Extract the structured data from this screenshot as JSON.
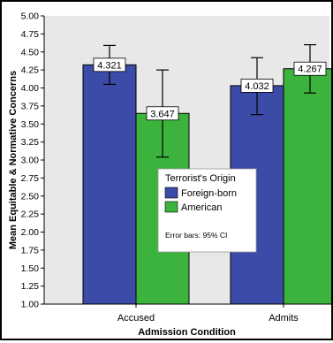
{
  "chart_data": {
    "type": "bar",
    "title": "",
    "xlabel": "Admission Condition",
    "ylabel": "Mean Equitable & Normative Concerns",
    "categories": [
      "Accused",
      "Admits"
    ],
    "series": [
      {
        "name": "Foreign-born",
        "values": [
          4.321,
          4.032
        ],
        "ci": [
          [
            4.05,
            4.59
          ],
          [
            3.63,
            4.42
          ]
        ],
        "color": "#3b4ba7"
      },
      {
        "name": "American",
        "values": [
          3.647,
          4.267
        ],
        "ci": [
          [
            3.04,
            4.25
          ],
          [
            3.93,
            4.6
          ]
        ],
        "color": "#3cb33c"
      }
    ],
    "data_labels": [
      "4.321",
      "4.032",
      "3.647",
      "4.267"
    ],
    "ylim": [
      1.0,
      5.0
    ],
    "yticks": [
      "1.00",
      "1.25",
      "1.50",
      "1.75",
      "2.00",
      "2.25",
      "2.50",
      "2.75",
      "3.00",
      "3.25",
      "3.50",
      "3.75",
      "4.00",
      "4.25",
      "4.50",
      "4.75",
      "5.00"
    ],
    "legend": {
      "title": "Terrorist's Origin",
      "entries": [
        "Foreign-born",
        "American"
      ],
      "note": "Error bars: 95% CI",
      "position": "center"
    },
    "plot_background": "#e8e8e8",
    "grid": false
  }
}
